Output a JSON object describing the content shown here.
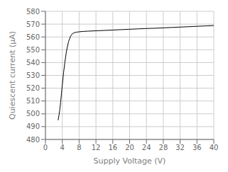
{
  "chart_data": {
    "type": "line",
    "xlabel": "Supply Voltage (V)",
    "ylabel": "Quiescent current (μA)",
    "x": [
      3.0,
      3.2,
      3.4,
      3.6,
      3.8,
      4.0,
      4.3,
      4.6,
      5.0,
      5.5,
      6.0,
      6.5,
      7.0,
      7.5,
      8.0,
      9.0,
      10.0,
      12.0,
      14.0,
      16.0,
      18.0,
      20.0,
      22.0,
      24.0,
      26.0,
      28.0,
      30.0,
      32.0,
      34.0,
      36.0,
      38.0,
      40.0
    ],
    "values": [
      495.0,
      498.5,
      503.0,
      509.0,
      515.5,
      522.5,
      532.0,
      540.0,
      549.0,
      556.5,
      560.8,
      562.8,
      563.5,
      563.8,
      564.0,
      564.3,
      564.5,
      564.8,
      565.1,
      565.4,
      565.7,
      566.0,
      566.3,
      566.6,
      566.8,
      567.1,
      567.4,
      567.7,
      568.0,
      568.3,
      568.6,
      568.9
    ],
    "color": "#000000",
    "xlim": [
      0,
      40
    ],
    "ylim": [
      480,
      580
    ],
    "xticks": [
      0,
      4,
      8,
      12,
      16,
      20,
      24,
      28,
      32,
      36,
      40
    ],
    "yticks": [
      480,
      490,
      500,
      510,
      520,
      530,
      540,
      550,
      560,
      570,
      580
    ],
    "grid": true
  }
}
